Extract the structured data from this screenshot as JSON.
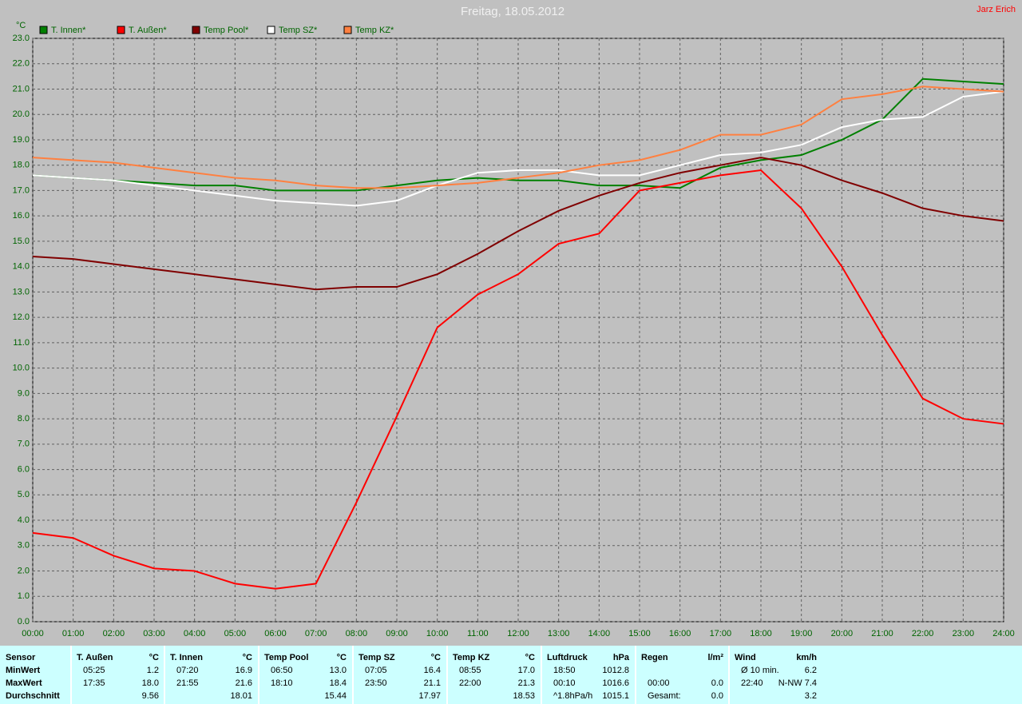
{
  "chart_data": {
    "type": "line",
    "title": "Freitag, 18.05.2012",
    "y_unit": "°C",
    "author": "Jarz Erich",
    "grid": true,
    "x": [
      0,
      1,
      2,
      3,
      4,
      5,
      6,
      7,
      8,
      9,
      10,
      11,
      12,
      13,
      14,
      15,
      16,
      17,
      18,
      19,
      20,
      21,
      22,
      23,
      24
    ],
    "xlim": [
      0,
      24
    ],
    "xticks": [
      {
        "value": 0,
        "label": "00:00"
      },
      {
        "value": 1,
        "label": "01:00"
      },
      {
        "value": 2,
        "label": "02:00"
      },
      {
        "value": 3,
        "label": "03:00"
      },
      {
        "value": 4,
        "label": "04:00"
      },
      {
        "value": 5,
        "label": "05:00"
      },
      {
        "value": 6,
        "label": "06:00"
      },
      {
        "value": 7,
        "label": "07:00"
      },
      {
        "value": 8,
        "label": "08:00"
      },
      {
        "value": 9,
        "label": "09:00"
      },
      {
        "value": 10,
        "label": "10:00"
      },
      {
        "value": 11,
        "label": "11:00"
      },
      {
        "value": 12,
        "label": "12:00"
      },
      {
        "value": 13,
        "label": "13:00"
      },
      {
        "value": 14,
        "label": "14:00"
      },
      {
        "value": 15,
        "label": "15:00"
      },
      {
        "value": 16,
        "label": "16:00"
      },
      {
        "value": 17,
        "label": "17:00"
      },
      {
        "value": 18,
        "label": "18:00"
      },
      {
        "value": 19,
        "label": "19:00"
      },
      {
        "value": 20,
        "label": "20:00"
      },
      {
        "value": 21,
        "label": "21:00"
      },
      {
        "value": 22,
        "label": "22:00"
      },
      {
        "value": 23,
        "label": "23:00"
      },
      {
        "value": 24,
        "label": "24:00"
      }
    ],
    "ylim": [
      0,
      23
    ],
    "yticks": [
      {
        "value": 0,
        "label": "0.0"
      },
      {
        "value": 1,
        "label": "1.0"
      },
      {
        "value": 2,
        "label": "2.0"
      },
      {
        "value": 3,
        "label": "3.0"
      },
      {
        "value": 4,
        "label": "4.0"
      },
      {
        "value": 5,
        "label": "5.0"
      },
      {
        "value": 6,
        "label": "6.0"
      },
      {
        "value": 7,
        "label": "7.0"
      },
      {
        "value": 8,
        "label": "8.0"
      },
      {
        "value": 9,
        "label": "9.0"
      },
      {
        "value": 10,
        "label": "10.0"
      },
      {
        "value": 11,
        "label": "11.0"
      },
      {
        "value": 12,
        "label": "12.0"
      },
      {
        "value": 13,
        "label": "13.0"
      },
      {
        "value": 14,
        "label": "14.0"
      },
      {
        "value": 15,
        "label": "15.0"
      },
      {
        "value": 16,
        "label": "16.0"
      },
      {
        "value": 17,
        "label": "17.0"
      },
      {
        "value": 18,
        "label": "18.0"
      },
      {
        "value": 19,
        "label": "19.0"
      },
      {
        "value": 20,
        "label": "20.0"
      },
      {
        "value": 21,
        "label": "21.0"
      },
      {
        "value": 22,
        "label": "22.0"
      },
      {
        "value": 23,
        "label": "23.0"
      }
    ],
    "series": [
      {
        "name": "T. Innen*",
        "color": "#008000",
        "values": [
          17.6,
          17.5,
          17.4,
          17.3,
          17.2,
          17.2,
          17.0,
          17.0,
          17.0,
          17.2,
          17.4,
          17.5,
          17.4,
          17.4,
          17.2,
          17.2,
          17.1,
          17.9,
          18.2,
          18.4,
          19.0,
          19.8,
          21.4,
          21.3,
          21.2
        ]
      },
      {
        "name": "T. Außen*",
        "color": "#ff0000",
        "values": [
          3.5,
          3.3,
          2.6,
          2.1,
          2.0,
          1.5,
          1.3,
          1.5,
          4.7,
          8.1,
          11.6,
          12.9,
          13.7,
          14.9,
          15.3,
          17.0,
          17.3,
          17.6,
          17.8,
          16.3,
          14.0,
          11.3,
          8.8,
          8.0,
          7.8
        ]
      },
      {
        "name": "Temp Pool*",
        "color": "#800000",
        "values": [
          14.4,
          14.3,
          14.1,
          13.9,
          13.7,
          13.5,
          13.3,
          13.1,
          13.2,
          13.2,
          13.7,
          14.5,
          15.4,
          16.2,
          16.8,
          17.3,
          17.7,
          18.0,
          18.3,
          18.0,
          17.4,
          16.9,
          16.3,
          16.0,
          15.8
        ]
      },
      {
        "name": "Temp SZ*",
        "color": "#ffffff",
        "values": [
          17.6,
          17.5,
          17.4,
          17.2,
          17.0,
          16.8,
          16.6,
          16.5,
          16.4,
          16.6,
          17.2,
          17.7,
          17.8,
          17.8,
          17.6,
          17.6,
          18.0,
          18.4,
          18.5,
          18.8,
          19.5,
          19.8,
          19.9,
          20.7,
          20.9
        ]
      },
      {
        "name": "Temp KZ*",
        "color": "#ff8040",
        "values": [
          18.3,
          18.2,
          18.1,
          17.9,
          17.7,
          17.5,
          17.4,
          17.2,
          17.1,
          17.1,
          17.2,
          17.3,
          17.5,
          17.7,
          18.0,
          18.2,
          18.6,
          19.2,
          19.2,
          19.6,
          20.6,
          20.8,
          21.1,
          21.0,
          20.9
        ]
      }
    ]
  },
  "table": {
    "sensor_header": "Sensor",
    "row_labels": [
      "MinWert",
      "MaxWert",
      "Durchschnitt"
    ],
    "groups": [
      {
        "name": "T. Außen",
        "unit": "°C",
        "rows": [
          [
            "05:25",
            "1.2"
          ],
          [
            "17:35",
            "18.0"
          ],
          [
            null,
            "9.56"
          ]
        ]
      },
      {
        "name": "T. Innen",
        "unit": "°C",
        "rows": [
          [
            "07:20",
            "16.9"
          ],
          [
            "21:55",
            "21.6"
          ],
          [
            null,
            "18.01"
          ]
        ]
      },
      {
        "name": "Temp Pool",
        "unit": "°C",
        "rows": [
          [
            "06:50",
            "13.0"
          ],
          [
            "18:10",
            "18.4"
          ],
          [
            null,
            "15.44"
          ]
        ]
      },
      {
        "name": "Temp SZ",
        "unit": "°C",
        "rows": [
          [
            "07:05",
            "16.4"
          ],
          [
            "23:50",
            "21.1"
          ],
          [
            null,
            "17.97"
          ]
        ]
      },
      {
        "name": "Temp KZ",
        "unit": "°C",
        "rows": [
          [
            "08:55",
            "17.0"
          ],
          [
            "22:00",
            "21.3"
          ],
          [
            null,
            "18.53"
          ]
        ]
      },
      {
        "name": "Luftdruck",
        "unit": "hPa",
        "rows": [
          [
            "18:50",
            "1012.8"
          ],
          [
            "00:10",
            "1016.6"
          ],
          [
            "^1.8hPa/h",
            "1015.1"
          ]
        ]
      },
      {
        "name": "Regen",
        "unit": "l/m²",
        "rows": [
          [
            null,
            null
          ],
          [
            "00:00",
            "0.0"
          ],
          [
            "Gesamt:",
            "0.0"
          ]
        ]
      },
      {
        "name": "Wind",
        "unit": "km/h",
        "rows": [
          [
            "Ø 10 min.",
            "6.2"
          ],
          [
            "22:40",
            "N-NW 7.4"
          ],
          [
            null,
            "3.2"
          ]
        ]
      }
    ]
  }
}
